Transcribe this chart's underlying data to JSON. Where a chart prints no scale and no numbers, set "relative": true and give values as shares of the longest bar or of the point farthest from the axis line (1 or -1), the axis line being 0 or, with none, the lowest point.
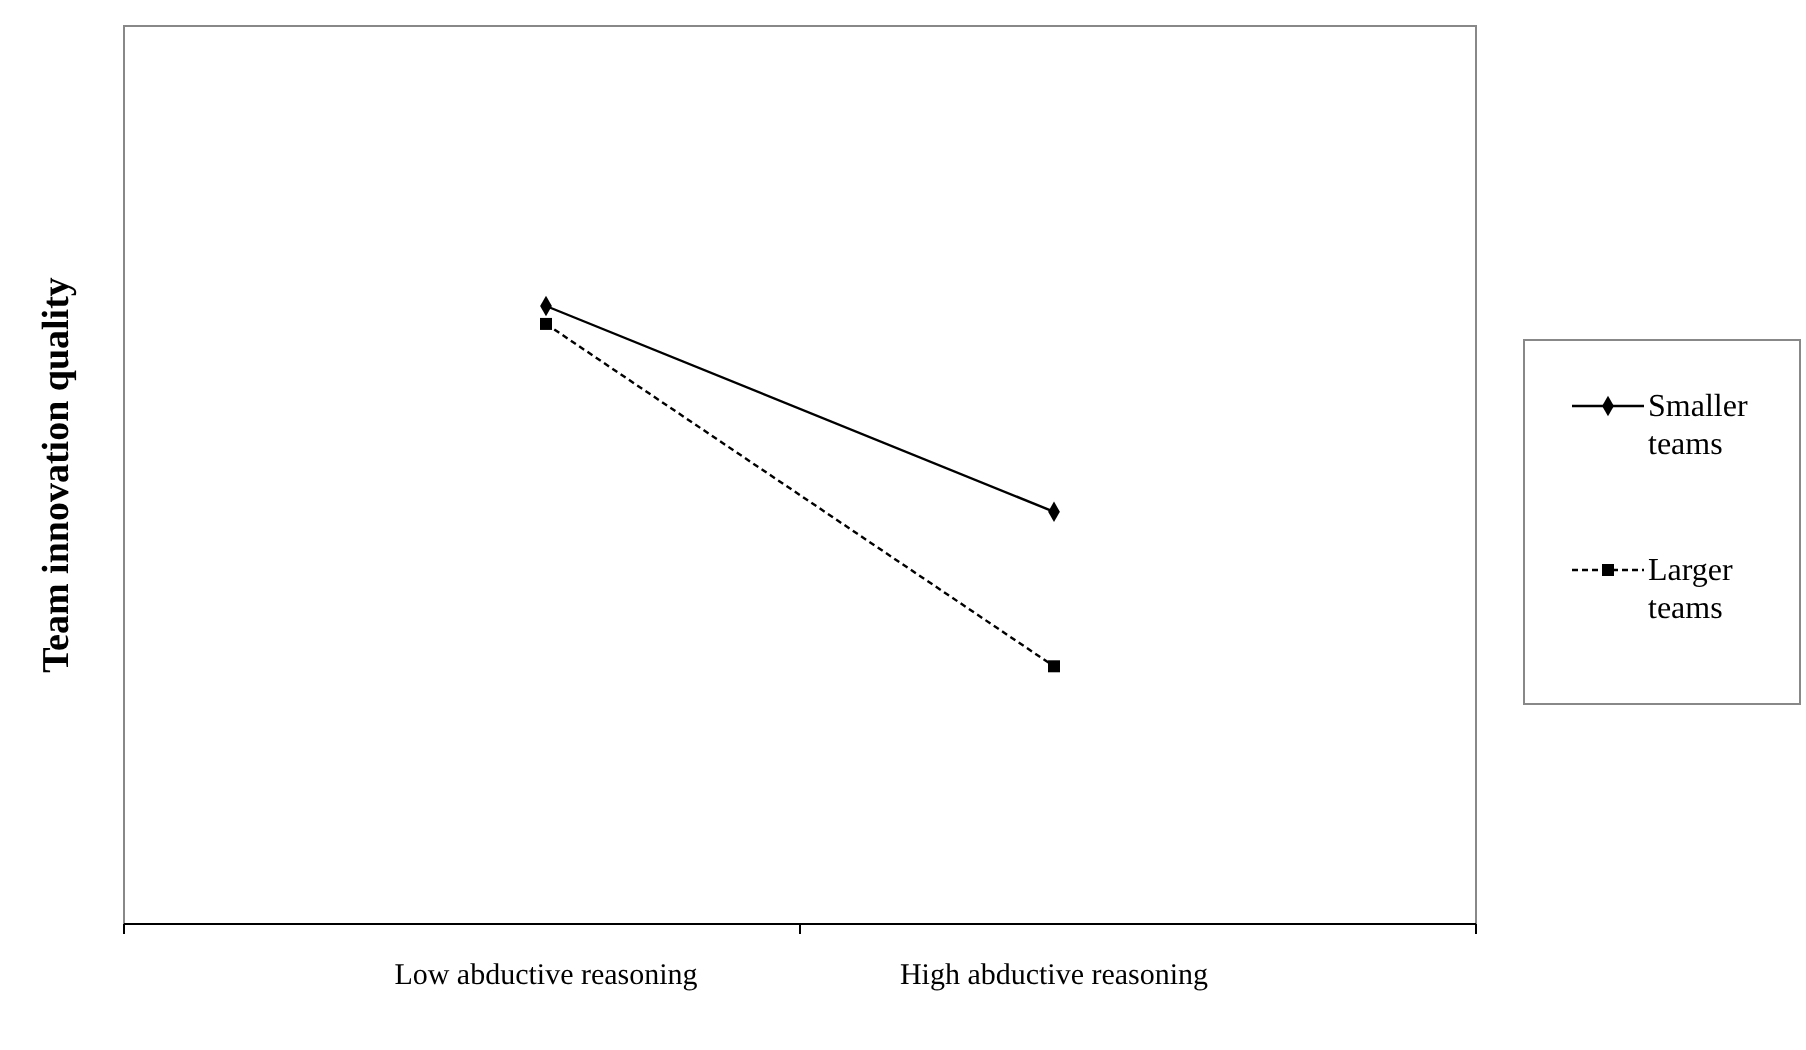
{
  "chart_data": {
    "type": "line",
    "relative": true,
    "ylabel": "Team innovation quality",
    "categories": [
      "Low abductive reasoning",
      "High abductive reasoning"
    ],
    "legend": "right",
    "series": [
      {
        "name": "Smaller teams",
        "color": "#000000",
        "values": [
          1,
          0.667
        ],
        "marker": "diamond",
        "line_style": "solid"
      },
      {
        "name": "Larger teams",
        "color": "#000000",
        "values": [
          0.971,
          0.417
        ],
        "marker": "square",
        "line_style": "dashed"
      }
    ]
  }
}
